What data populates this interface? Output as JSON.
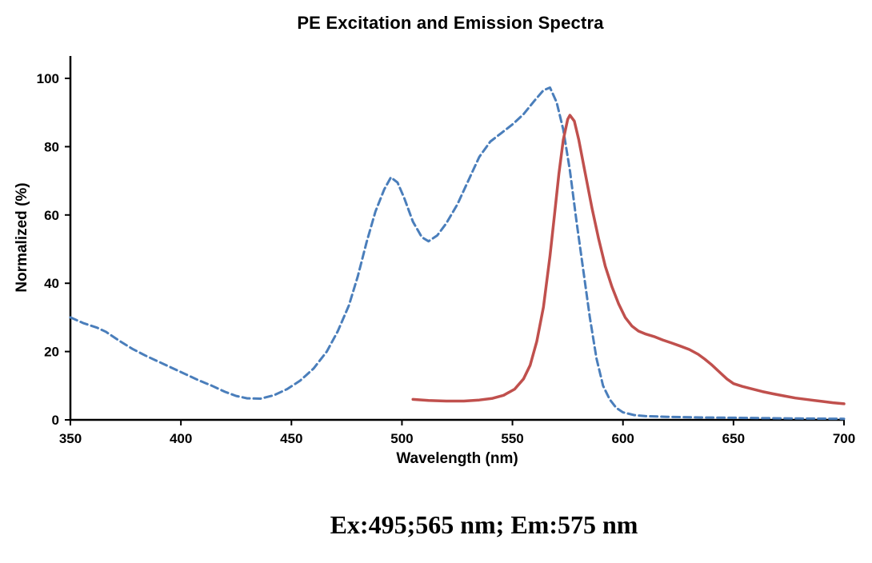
{
  "page": {
    "title": "PE Excitation and Emission Spectra",
    "caption": "Ex:495;565 nm; Em:575 nm"
  },
  "chart_data": {
    "type": "line",
    "title": "PE Excitation and Emission Spectra",
    "xlabel": "Wavelength (nm)",
    "ylabel": "Normalized (%)",
    "xlim": [
      350,
      700
    ],
    "ylim": [
      0,
      100
    ],
    "xticks": [
      350,
      400,
      450,
      500,
      550,
      600,
      650,
      700
    ],
    "yticks": [
      0,
      20,
      40,
      60,
      80,
      100
    ],
    "grid": false,
    "legend": "none",
    "annotation": "Ex:495;565 nm; Em:575 nm",
    "axis_color": "#000000",
    "background": "#ffffff",
    "series": [
      {
        "name": "Excitation",
        "style": "dashed",
        "color": "#4a7ebb",
        "width": 3,
        "points": [
          [
            350,
            30
          ],
          [
            356,
            28.3
          ],
          [
            362,
            27
          ],
          [
            366,
            25.8
          ],
          [
            372,
            23.2
          ],
          [
            378,
            20.8
          ],
          [
            384,
            18.8
          ],
          [
            390,
            17
          ],
          [
            396,
            15.2
          ],
          [
            402,
            13.4
          ],
          [
            408,
            11.6
          ],
          [
            414,
            10
          ],
          [
            420,
            8.2
          ],
          [
            425,
            7
          ],
          [
            430,
            6.3
          ],
          [
            436,
            6.2
          ],
          [
            442,
            7.2
          ],
          [
            448,
            9
          ],
          [
            454,
            11.5
          ],
          [
            460,
            15
          ],
          [
            466,
            20
          ],
          [
            471,
            26
          ],
          [
            476,
            33.5
          ],
          [
            480,
            42
          ],
          [
            484,
            52
          ],
          [
            488,
            61
          ],
          [
            492,
            67.5
          ],
          [
            495,
            71
          ],
          [
            498,
            69.5
          ],
          [
            501,
            65
          ],
          [
            505,
            58
          ],
          [
            509,
            53.5
          ],
          [
            512,
            52.3
          ],
          [
            516,
            54
          ],
          [
            520,
            57.5
          ],
          [
            525,
            63
          ],
          [
            530,
            70
          ],
          [
            535,
            77
          ],
          [
            540,
            81.5
          ],
          [
            545,
            84
          ],
          [
            550,
            86.5
          ],
          [
            555,
            89.5
          ],
          [
            560,
            93.5
          ],
          [
            564,
            96.5
          ],
          [
            567,
            97.3
          ],
          [
            570,
            93
          ],
          [
            573,
            85
          ],
          [
            576,
            73
          ],
          [
            579,
            58
          ],
          [
            582,
            44
          ],
          [
            585,
            30
          ],
          [
            588,
            18
          ],
          [
            591,
            10
          ],
          [
            594,
            6
          ],
          [
            597,
            3.5
          ],
          [
            600,
            2.2
          ],
          [
            605,
            1.4
          ],
          [
            610,
            1.1
          ],
          [
            620,
            0.9
          ],
          [
            635,
            0.7
          ],
          [
            650,
            0.6
          ],
          [
            665,
            0.5
          ],
          [
            680,
            0.4
          ],
          [
            700,
            0.3
          ]
        ]
      },
      {
        "name": "Emission",
        "style": "solid",
        "color": "#c0504d",
        "width": 3.5,
        "points": [
          [
            505,
            6
          ],
          [
            512,
            5.7
          ],
          [
            520,
            5.5
          ],
          [
            528,
            5.5
          ],
          [
            535,
            5.8
          ],
          [
            541,
            6.3
          ],
          [
            546,
            7.2
          ],
          [
            551,
            9
          ],
          [
            555,
            12
          ],
          [
            558,
            16
          ],
          [
            561,
            23
          ],
          [
            564,
            33
          ],
          [
            567,
            48
          ],
          [
            569,
            60
          ],
          [
            571,
            72
          ],
          [
            573,
            82
          ],
          [
            575,
            88
          ],
          [
            576,
            89.2
          ],
          [
            578,
            87.5
          ],
          [
            580,
            82
          ],
          [
            583,
            72
          ],
          [
            586,
            62
          ],
          [
            589,
            53
          ],
          [
            592,
            45
          ],
          [
            595,
            39
          ],
          [
            598,
            34
          ],
          [
            601,
            30
          ],
          [
            604,
            27.5
          ],
          [
            607,
            26
          ],
          [
            610,
            25.2
          ],
          [
            614,
            24.4
          ],
          [
            618,
            23.4
          ],
          [
            622,
            22.5
          ],
          [
            626,
            21.6
          ],
          [
            630,
            20.6
          ],
          [
            634,
            19.2
          ],
          [
            637,
            17.8
          ],
          [
            640,
            16.2
          ],
          [
            644,
            13.8
          ],
          [
            647,
            12
          ],
          [
            650,
            10.6
          ],
          [
            654,
            9.8
          ],
          [
            658,
            9.1
          ],
          [
            663,
            8.3
          ],
          [
            668,
            7.6
          ],
          [
            673,
            7
          ],
          [
            678,
            6.4
          ],
          [
            684,
            5.9
          ],
          [
            690,
            5.4
          ],
          [
            695,
            5
          ],
          [
            700,
            4.7
          ]
        ]
      }
    ]
  }
}
